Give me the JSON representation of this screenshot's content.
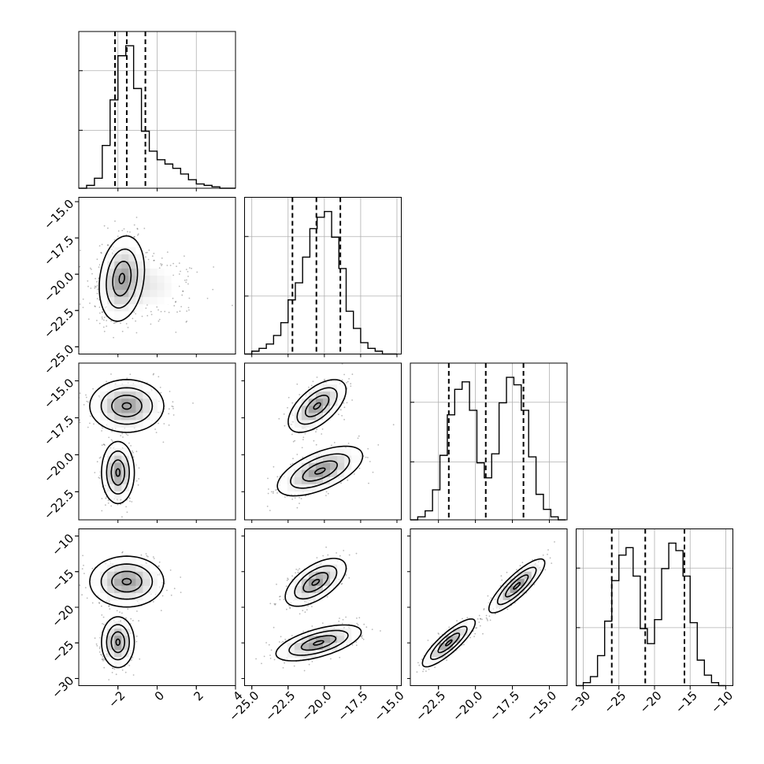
{
  "chart_data": {
    "type": "corner",
    "n_params": 4,
    "ticks": [
      {
        "values": [
          -2,
          0,
          2,
          4
        ],
        "labels": [
          "−2",
          "0",
          "2",
          "4"
        ],
        "range": [
          -4.0,
          4.0
        ]
      },
      {
        "values": [
          -25.0,
          -22.5,
          -20.0,
          -17.5,
          -15.0
        ],
        "labels": [
          "−25.0",
          "−22.5",
          "−20.0",
          "−17.5",
          "−15.0"
        ],
        "range": [
          -25.5,
          -14.7
        ]
      },
      {
        "values": [
          -22.5,
          -20.0,
          -17.5,
          -15.0
        ],
        "labels": [
          "−22.5",
          "−20.0",
          "−17.5",
          "−15.0"
        ],
        "range": [
          -24.4,
          -13.8
        ]
      },
      {
        "values": [
          -30,
          -25,
          -20,
          -15,
          -10
        ],
        "labels": [
          "−30",
          "−25",
          "−20",
          "−15",
          "−10"
        ],
        "range": [
          -31.0,
          -9.0
        ]
      }
    ],
    "marginals": [
      {
        "bins": [
          -4.0,
          -3.6,
          -3.2,
          -2.8,
          -2.4,
          -2.0,
          -1.6,
          -1.2,
          -0.8,
          -0.4,
          0.0,
          0.4,
          0.8,
          1.2,
          1.6,
          2.0,
          2.4,
          2.8,
          3.2,
          3.6,
          4.0
        ],
        "counts": [
          0,
          2,
          7,
          30,
          62,
          93,
          100,
          70,
          40,
          26,
          20,
          17,
          14,
          10,
          6,
          3,
          2,
          1,
          0,
          0
        ],
        "quantiles": [
          -2.15,
          -1.55,
          -0.6
        ]
      },
      {
        "bins": [
          -25.5,
          -25.0,
          -24.5,
          -24.0,
          -23.5,
          -23.0,
          -22.5,
          -22.0,
          -21.5,
          -21.0,
          -20.5,
          -20.0,
          -19.5,
          -19.0,
          -18.5,
          -18.0,
          -17.5,
          -17.0,
          -16.5,
          -16.0,
          -15.5,
          -15.0
        ],
        "counts": [
          0,
          2,
          4,
          7,
          13,
          22,
          38,
          50,
          68,
          88,
          96,
          100,
          82,
          60,
          30,
          18,
          8,
          4,
          2,
          0,
          0
        ],
        "quantiles": [
          -22.2,
          -20.55,
          -18.9
        ]
      },
      {
        "bins": [
          -24.4,
          -23.9,
          -23.4,
          -22.9,
          -22.4,
          -21.9,
          -21.4,
          -20.9,
          -20.4,
          -19.9,
          -19.4,
          -18.9,
          -18.4,
          -17.9,
          -17.4,
          -16.9,
          -16.4,
          -15.9,
          -15.4,
          -14.9,
          -14.4,
          -13.9
        ],
        "counts": [
          0,
          2,
          6,
          20,
          43,
          70,
          87,
          92,
          73,
          38,
          28,
          44,
          78,
          95,
          90,
          73,
          42,
          17,
          7,
          2,
          0
        ],
        "quantiles": [
          -21.8,
          -19.3,
          -16.75
        ]
      },
      {
        "bins": [
          -31.0,
          -30.0,
          -29.0,
          -28.0,
          -27.0,
          -26.0,
          -25.0,
          -24.0,
          -23.0,
          -22.0,
          -21.0,
          -20.0,
          -19.0,
          -18.0,
          -17.0,
          -16.0,
          -15.0,
          -14.0,
          -13.0,
          -12.0,
          -11.0,
          -10.0
        ],
        "counts": [
          0,
          2,
          6,
          20,
          43,
          70,
          87,
          92,
          73,
          38,
          28,
          44,
          78,
          95,
          90,
          73,
          42,
          17,
          7,
          2,
          0
        ],
        "quantiles": [
          -26.0,
          -21.3,
          -15.8
        ]
      }
    ],
    "joint_modes": {
      "0-1": [
        {
          "cx": -1.8,
          "cy": -20.3,
          "sx": 0.55,
          "sy": 1.4,
          "r": 0.2,
          "w": 1.0
        },
        {
          "cx": -0.5,
          "cy": -20.8,
          "sx": 1.4,
          "sy": 1.3,
          "r": 0.0,
          "w": 0.35
        }
      ],
      "0-2": [
        {
          "cx": -1.55,
          "cy": -16.7,
          "sx": 0.9,
          "sy": 0.85,
          "r": 0.0,
          "w": 1.0
        },
        {
          "cx": -2.0,
          "cy": -21.2,
          "sx": 0.4,
          "sy": 1.0,
          "r": 0.0,
          "w": 1.0
        }
      ],
      "0-3": [
        {
          "cx": -1.55,
          "cy": -16.4,
          "sx": 0.9,
          "sy": 1.7,
          "r": 0.0,
          "w": 1.0
        },
        {
          "cx": -2.0,
          "cy": -24.9,
          "sx": 0.4,
          "sy": 1.7,
          "r": 0.0,
          "w": 1.0
        }
      ],
      "1-2": [
        {
          "cx": -20.5,
          "cy": -16.7,
          "sx": 0.95,
          "sy": 0.85,
          "r": 0.6,
          "w": 1.0
        },
        {
          "cx": -20.3,
          "cy": -21.1,
          "sx": 1.4,
          "sy": 0.8,
          "r": 0.6,
          "w": 1.0
        }
      ],
      "1-3": [
        {
          "cx": -20.6,
          "cy": -16.5,
          "sx": 1.0,
          "sy": 1.6,
          "r": 0.6,
          "w": 1.0
        },
        {
          "cx": -20.4,
          "cy": -25.0,
          "sx": 1.4,
          "sy": 1.2,
          "r": 0.6,
          "w": 1.0
        }
      ],
      "2-3": [
        {
          "cx": -17.2,
          "cy": -17.0,
          "sx": 0.9,
          "sy": 1.8,
          "r": 0.85,
          "w": 1.0
        },
        {
          "cx": -21.8,
          "cy": -25.0,
          "sx": 0.85,
          "sy": 1.6,
          "r": 0.85,
          "w": 1.0
        }
      ]
    },
    "grid": true,
    "colors": {
      "line": "#000000",
      "grid": "#b0b0b0",
      "points": "#000000"
    }
  }
}
